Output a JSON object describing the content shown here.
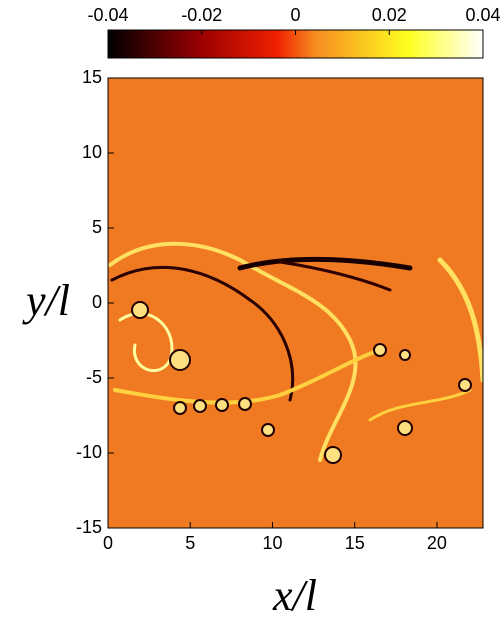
{
  "chart_data": {
    "type": "field",
    "xlabel": "x/l",
    "ylabel": "y/l",
    "xlim": [
      0,
      22.8
    ],
    "ylim": [
      -15,
      15
    ],
    "xticks": [
      0,
      5,
      10,
      15,
      20
    ],
    "yticks": [
      -15,
      -10,
      -5,
      0,
      5,
      10,
      15
    ],
    "clim": [
      -0.04,
      0.04
    ],
    "cticks": [
      -0.04,
      -0.02,
      0,
      0.02,
      0.04
    ]
  }
}
